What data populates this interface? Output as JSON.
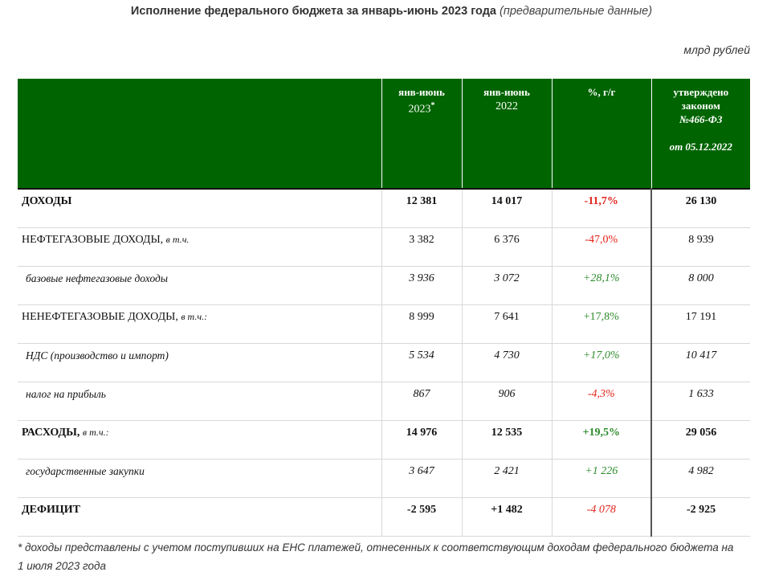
{
  "title": {
    "main": "Исполнение федерального бюджета за январь-июнь 2023 года",
    "sub": "(предварительные данные)"
  },
  "unit": "млрд рублей",
  "header": {
    "col1_top": "янв-июнь",
    "col1_year": "2023",
    "col1_mark": "*",
    "col2_top": "янв-июнь",
    "col2_year": "2022",
    "col3": "%, г/г",
    "col4_line1": "утверждено",
    "col4_line2": "законом",
    "col4_law": "№466-ФЗ",
    "col4_date": "от 05.12.2022"
  },
  "rows": [
    {
      "label": "ДОХОДЫ",
      "suffix": "",
      "v1": "12 381",
      "v2": "14 017",
      "pct": "-11,7%",
      "law": "26 130"
    },
    {
      "label": "НЕФТЕГАЗОВЫЕ ДОХОДЫ,",
      "suffix": "в т.ч.",
      "v1": "3 382",
      "v2": "6 376",
      "pct": "-47,0%",
      "law": "8 939"
    },
    {
      "label": "базовые нефтегазовые доходы",
      "suffix": "",
      "v1": "3 936",
      "v2": "3 072",
      "pct": "+28,1%",
      "law": "8 000"
    },
    {
      "label": "НЕНЕФТЕГАЗОВЫЕ ДОХОДЫ,",
      "suffix": "в т.ч.:",
      "v1": "8 999",
      "v2": "7 641",
      "pct": "+17,8%",
      "law": "17 191"
    },
    {
      "label": "НДС (производство и импорт)",
      "suffix": "",
      "v1": "5 534",
      "v2": "4 730",
      "pct": "+17,0%",
      "law": "10 417"
    },
    {
      "label": "налог на прибыль",
      "suffix": "",
      "v1": "867",
      "v2": "906",
      "pct": "-4,3%",
      "law": "1 633"
    },
    {
      "label": "РАСХОДЫ,",
      "suffix": "в т.ч.:",
      "v1": "14 976",
      "v2": "12 535",
      "pct": "+19,5%",
      "law": "29 056"
    },
    {
      "label": "государственные закупки",
      "suffix": "",
      "v1": "3 647",
      "v2": "2 421",
      "pct": "+1 226",
      "law": "4 982"
    },
    {
      "label": "ДЕФИЦИТ",
      "suffix": "",
      "v1": "-2 595",
      "v2": "+1 482",
      "pct": "-4 078",
      "law": "-2 925"
    }
  ],
  "colors": {
    "header_bg": "#006400",
    "negative": "#e2231a",
    "positive": "#2e8b2e"
  },
  "note": "* доходы представлены с учетом поступивших на ЕНС платежей, отнесенных к соответствующим доходам федерального бюджета на 1 июля 2023 года"
}
